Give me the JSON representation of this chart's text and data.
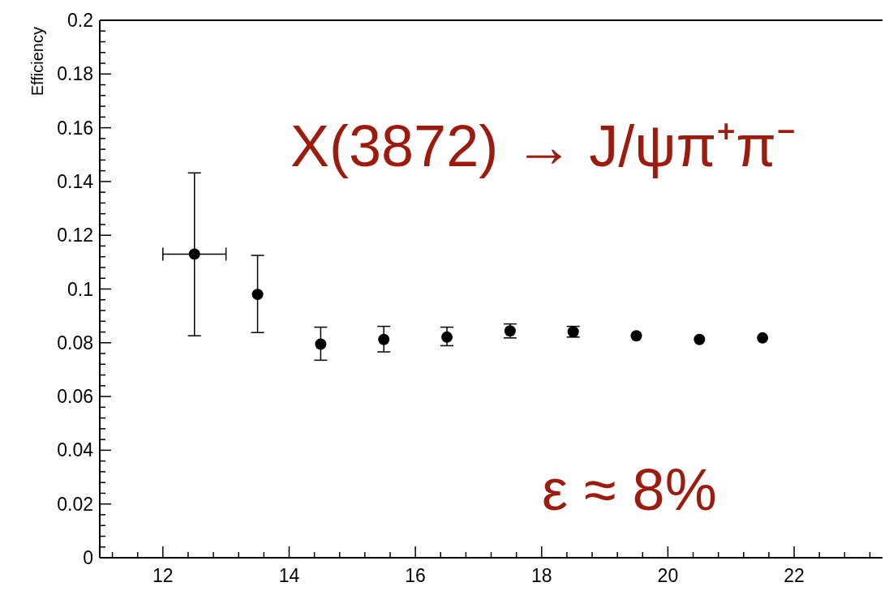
{
  "chart_data": {
    "type": "scatter",
    "ylabel": "Efficiency",
    "x": [
      12.5,
      13.5,
      14.5,
      15.5,
      16.5,
      17.5,
      18.5,
      19.5,
      20.5,
      21.5
    ],
    "series": [
      {
        "color": "#000000",
        "values": [
          0.113,
          0.098,
          0.0795,
          0.0812,
          0.0821,
          0.0844,
          0.0841,
          0.0826,
          0.0812,
          0.0818
        ],
        "errors": [
          [
            0.0826,
            0.1432
          ],
          [
            0.0838,
            0.1125
          ],
          [
            0.0735,
            0.0858
          ],
          [
            0.0766,
            0.0861
          ],
          [
            0.0789,
            0.0858
          ],
          [
            0.0818,
            0.087
          ],
          [
            0.0821,
            0.0861
          ],
          null,
          null,
          null
        ],
        "xerrors": [
          0.5,
          null,
          null,
          null,
          null,
          null,
          null,
          null,
          null,
          null
        ]
      }
    ],
    "xlim": [
      11,
      23.4
    ],
    "xticks": [
      {
        "value": 11.2,
        "label": null
      },
      {
        "value": 11.6,
        "label": null
      },
      12,
      {
        "value": 12.4,
        "label": null
      },
      {
        "value": 12.8,
        "label": null
      },
      {
        "value": 13.2,
        "label": null
      },
      {
        "value": 13.6,
        "label": null
      },
      14,
      {
        "value": 14.4,
        "label": null
      },
      {
        "value": 14.8,
        "label": null
      },
      {
        "value": 15.2,
        "label": null
      },
      {
        "value": 15.6,
        "label": null
      },
      16,
      {
        "value": 16.4,
        "label": null
      },
      {
        "value": 16.8,
        "label": null
      },
      {
        "value": 17.2,
        "label": null
      },
      {
        "value": 17.6,
        "label": null
      },
      18,
      {
        "value": 18.4,
        "label": null
      },
      {
        "value": 18.8,
        "label": null
      },
      {
        "value": 19.2,
        "label": null
      },
      {
        "value": 19.6,
        "label": null
      },
      20,
      {
        "value": 20.4,
        "label": null
      },
      {
        "value": 20.8,
        "label": null
      },
      {
        "value": 21.2,
        "label": null
      },
      {
        "value": 21.6,
        "label": null
      },
      22,
      {
        "value": 22.4,
        "label": null
      },
      {
        "value": 22.8,
        "label": null
      },
      {
        "value": 23.2,
        "label": null
      }
    ],
    "ylim": [
      0,
      0.2
    ],
    "yticks": [
      0,
      {
        "value": 0.004,
        "label": null
      },
      {
        "value": 0.008,
        "label": null
      },
      {
        "value": 0.012,
        "label": null
      },
      {
        "value": 0.016,
        "label": null
      },
      0.02,
      {
        "value": 0.024,
        "label": null
      },
      {
        "value": 0.028,
        "label": null
      },
      {
        "value": 0.032,
        "label": null
      },
      {
        "value": 0.036,
        "label": null
      },
      0.04,
      {
        "value": 0.044,
        "label": null
      },
      {
        "value": 0.048,
        "label": null
      },
      {
        "value": 0.052,
        "label": null
      },
      {
        "value": 0.056,
        "label": null
      },
      0.06,
      {
        "value": 0.064,
        "label": null
      },
      {
        "value": 0.068,
        "label": null
      },
      {
        "value": 0.072,
        "label": null
      },
      {
        "value": 0.076,
        "label": null
      },
      0.08,
      {
        "value": 0.084,
        "label": null
      },
      {
        "value": 0.088,
        "label": null
      },
      {
        "value": 0.092,
        "label": null
      },
      {
        "value": 0.096,
        "label": null
      },
      0.1,
      {
        "value": 0.104,
        "label": null
      },
      {
        "value": 0.108,
        "label": null
      },
      {
        "value": 0.112,
        "label": null
      },
      {
        "value": 0.116,
        "label": null
      },
      0.12,
      {
        "value": 0.124,
        "label": null
      },
      {
        "value": 0.128,
        "label": null
      },
      {
        "value": 0.132,
        "label": null
      },
      {
        "value": 0.136,
        "label": null
      },
      0.14,
      {
        "value": 0.144,
        "label": null
      },
      {
        "value": 0.148,
        "label": null
      },
      {
        "value": 0.152,
        "label": null
      },
      {
        "value": 0.156,
        "label": null
      },
      0.16,
      {
        "value": 0.164,
        "label": null
      },
      {
        "value": 0.168,
        "label": null
      },
      {
        "value": 0.172,
        "label": null
      },
      {
        "value": 0.176,
        "label": null
      },
      0.18,
      {
        "value": 0.184,
        "label": null
      },
      {
        "value": 0.188,
        "label": null
      },
      {
        "value": 0.192,
        "label": null
      },
      {
        "value": 0.196,
        "label": null
      },
      0.2
    ],
    "marker": "circle",
    "grid": false,
    "legend": false,
    "annotations": [
      "X(3872) → J/ψπ⁺π⁻",
      "ε ≈ 8%"
    ]
  }
}
